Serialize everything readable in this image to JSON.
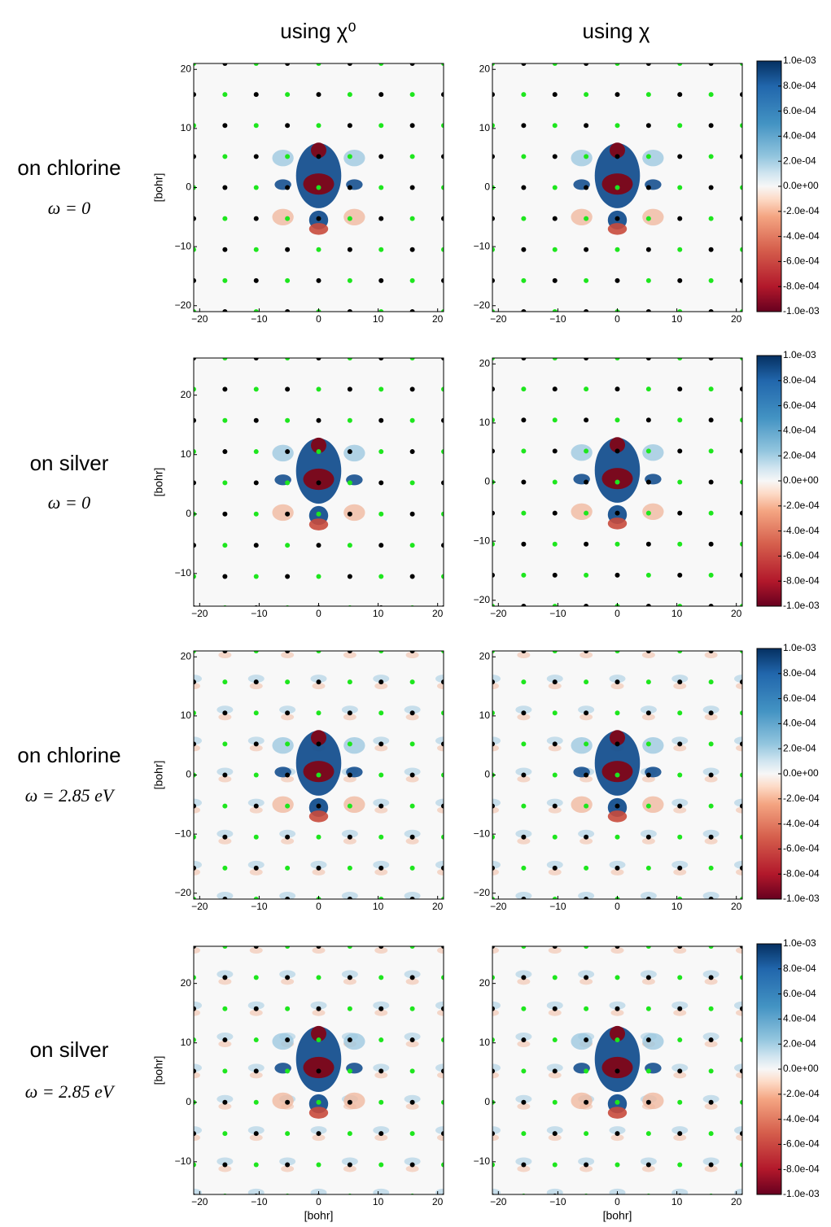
{
  "column_titles": [
    "using χ⁰",
    "using χ"
  ],
  "row_labels": [
    {
      "text": "on chlorine",
      "omega": "ω = 0"
    },
    {
      "text": "on silver",
      "omega": "ω = 0"
    },
    {
      "text": "on chlorine",
      "omega": "ω = 2.85 eV"
    },
    {
      "text": "on silver",
      "omega": "ω = 2.85 eV"
    }
  ],
  "colorbar": {
    "clim": [
      -0.001,
      0.001
    ],
    "ticks": [
      {
        "value": 0.001,
        "label": "1.0e-03"
      },
      {
        "value": 0.0008,
        "label": "8.0e-04"
      },
      {
        "value": 0.0006,
        "label": "6.0e-04"
      },
      {
        "value": 0.0004,
        "label": "4.0e-04"
      },
      {
        "value": 0.0002,
        "label": "2.0e-04"
      },
      {
        "value": 0,
        "label": "0.0e+00"
      },
      {
        "value": -0.0002,
        "label": "-2.0e-04"
      },
      {
        "value": -0.0004,
        "label": "-4.0e-04"
      },
      {
        "value": -0.0006,
        "label": "-6.0e-04"
      },
      {
        "value": -0.0008,
        "label": "-8.0e-04"
      },
      {
        "value": -0.001,
        "label": "-1.0e-03"
      }
    ]
  },
  "atoms": {
    "series": [
      {
        "color": "#000000",
        "x": [
          -15.75,
          -5.25,
          5.25,
          15.75,
          -21,
          -10.5,
          0,
          10.5,
          21,
          -15.75,
          -5.25,
          5.25,
          15.75,
          -21,
          -10.5,
          0,
          10.5,
          21,
          -15.75,
          -5.25,
          5.25,
          15.75,
          -21,
          -10.5,
          0,
          10.5,
          21,
          -15.75,
          -5.25,
          5.25,
          15.75,
          -21,
          -10.5,
          0,
          10.5,
          21,
          -15.75,
          -5.25,
          5.25,
          15.75,
          -21,
          -10.5,
          0,
          10.5,
          21
        ],
        "y": [
          -21,
          -21,
          -21,
          -21,
          -15.75,
          -15.75,
          -15.75,
          -15.75,
          -15.75,
          -10.5,
          -10.5,
          -10.5,
          -10.5,
          -5.25,
          -5.25,
          -5.25,
          -5.25,
          -5.25,
          0,
          0,
          0,
          0,
          5.25,
          5.25,
          5.25,
          5.25,
          5.25,
          10.5,
          10.5,
          10.5,
          10.5,
          15.75,
          15.75,
          15.75,
          15.75,
          15.75,
          21,
          21,
          21,
          21,
          26.25,
          26.25,
          26.25,
          26.25,
          26.25
        ]
      },
      {
        "color": "#1ee61e",
        "x": [
          -21,
          -10.5,
          0,
          10.5,
          21,
          -15.75,
          -5.25,
          5.25,
          15.75,
          -21,
          -10.5,
          0,
          10.5,
          21,
          -15.75,
          -5.25,
          5.25,
          15.75,
          -21,
          -10.5,
          0,
          10.5,
          21,
          -15.75,
          -5.25,
          5.25,
          15.75,
          -21,
          -10.5,
          0,
          10.5,
          21,
          -15.75,
          -5.25,
          5.25,
          15.75,
          -21,
          -10.5,
          0,
          10.5,
          21,
          -15.75,
          -5.25,
          5.25,
          15.75
        ],
        "y": [
          -21,
          -21,
          -21,
          -21,
          -21,
          -15.75,
          -15.75,
          -15.75,
          -15.75,
          -10.5,
          -10.5,
          -10.5,
          -10.5,
          -10.5,
          -5.25,
          -5.25,
          -5.25,
          -5.25,
          0,
          0,
          0,
          0,
          0,
          5.25,
          5.25,
          5.25,
          5.25,
          10.5,
          10.5,
          10.5,
          10.5,
          10.5,
          15.75,
          15.75,
          15.75,
          15.75,
          21,
          21,
          21,
          21,
          21,
          26.25,
          26.25,
          26.25,
          26.25
        ]
      }
    ]
  },
  "chart_data": [
    {
      "type": "heatmap",
      "xlim": [
        -21,
        21
      ],
      "ylim": [
        -21,
        21
      ],
      "ylabel": "[bohr]",
      "xticks": [
        {
          "value": -20,
          "label": "−20"
        },
        {
          "value": -10,
          "label": "−10"
        },
        0,
        10,
        20
      ],
      "yticks": [
        {
          "value": -20,
          "label": "−20"
        },
        {
          "value": -10,
          "label": "−10"
        },
        0,
        10,
        20
      ]
    },
    {
      "type": "heatmap",
      "xlim": [
        -21,
        21
      ],
      "ylim": [
        -21,
        21
      ],
      "xticks": [
        {
          "value": -20,
          "label": "−20"
        },
        {
          "value": -10,
          "label": "−10"
        },
        0,
        10,
        20
      ],
      "yticks": [
        {
          "value": -20,
          "label": "−20"
        },
        {
          "value": -10,
          "label": "−10"
        },
        0,
        10,
        20
      ]
    },
    {
      "type": "heatmap",
      "xlim": [
        -21,
        21
      ],
      "ylim": [
        -15.5,
        26.25
      ],
      "ylabel": "[bohr]",
      "xticks": [
        {
          "value": -20,
          "label": "−20"
        },
        {
          "value": -10,
          "label": "−10"
        },
        0,
        10,
        20
      ],
      "yticks": [
        {
          "value": -10,
          "label": "−10"
        },
        0,
        10,
        20
      ]
    },
    {
      "type": "heatmap",
      "xlim": [
        -21,
        21
      ],
      "ylim": [
        -21,
        21
      ],
      "xticks": [
        {
          "value": -20,
          "label": "−20"
        },
        {
          "value": -10,
          "label": "−10"
        },
        0,
        10,
        20
      ],
      "yticks": [
        {
          "value": -20,
          "label": "−20"
        },
        {
          "value": -10,
          "label": "−10"
        },
        0,
        10,
        20
      ]
    },
    {
      "type": "heatmap",
      "xlim": [
        -21,
        21
      ],
      "ylim": [
        -21,
        21
      ],
      "ylabel": "[bohr]",
      "xticks": [
        {
          "value": -20,
          "label": "−20"
        },
        {
          "value": -10,
          "label": "−10"
        },
        0,
        10,
        20
      ],
      "yticks": [
        {
          "value": -20,
          "label": "−20"
        },
        {
          "value": -10,
          "label": "−10"
        },
        0,
        10,
        20
      ]
    },
    {
      "type": "heatmap",
      "xlim": [
        -21,
        21
      ],
      "ylim": [
        -21,
        21
      ],
      "xticks": [
        {
          "value": -20,
          "label": "−20"
        },
        {
          "value": -10,
          "label": "−10"
        },
        0,
        10,
        20
      ],
      "yticks": [
        {
          "value": -20,
          "label": "−20"
        },
        {
          "value": -10,
          "label": "−10"
        },
        0,
        10,
        20
      ]
    },
    {
      "type": "heatmap",
      "xlim": [
        -21,
        21
      ],
      "ylim": [
        -15.5,
        26.25
      ],
      "ylabel": "[bohr]",
      "xlabel": "[bohr]",
      "xticks": [
        {
          "value": -20,
          "label": "−20"
        },
        {
          "value": -10,
          "label": "−10"
        },
        0,
        10,
        20
      ],
      "yticks": [
        {
          "value": -10,
          "label": "−10"
        },
        0,
        10,
        20
      ]
    },
    {
      "type": "heatmap",
      "xlim": [
        -21,
        21
      ],
      "ylim": [
        -15.5,
        26.25
      ],
      "xlabel": "[bohr]",
      "xticks": [
        {
          "value": -20,
          "label": "−20"
        },
        {
          "value": -10,
          "label": "−10"
        },
        0,
        10,
        20
      ],
      "yticks": [
        {
          "value": -10,
          "label": "−10"
        },
        0,
        10,
        20
      ]
    }
  ]
}
